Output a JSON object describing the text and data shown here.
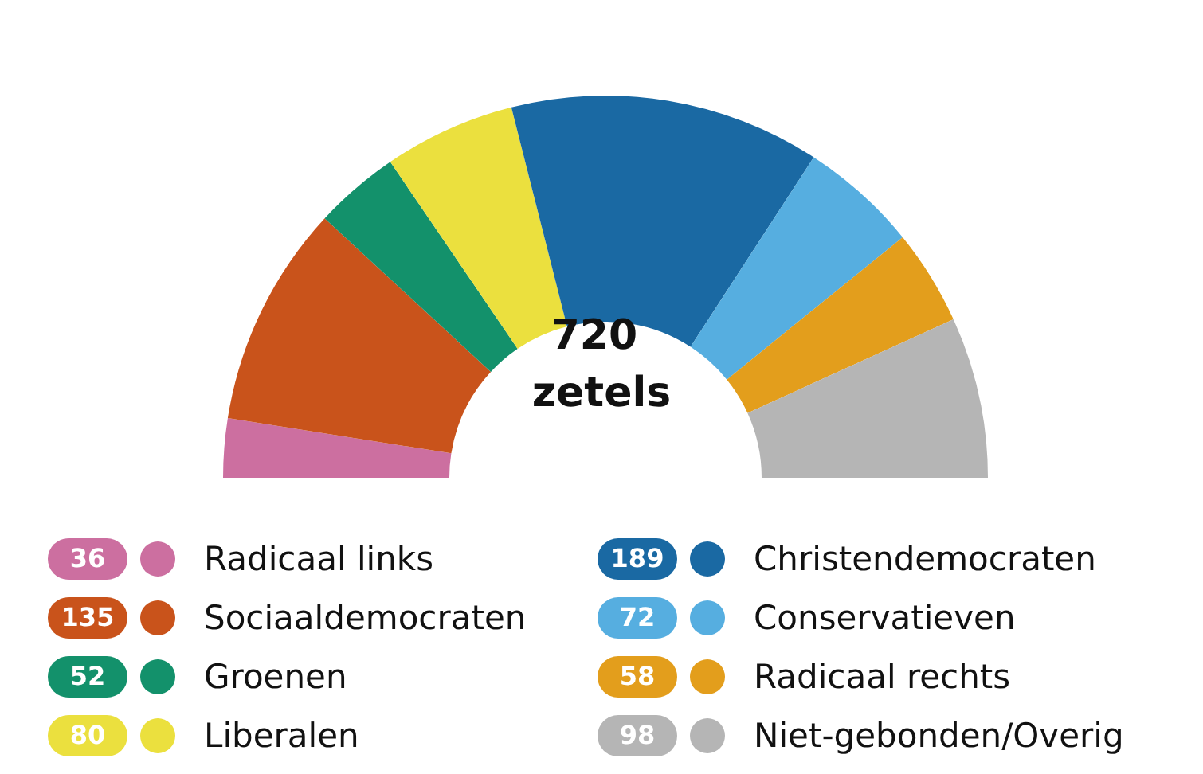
{
  "chart_data": {
    "type": "other",
    "title": "720 zetels",
    "categories": [
      "Radicaal links",
      "Sociaaldemocraten",
      "Groenen",
      "Liberalen",
      "Christendemocraten",
      "Conservatieven",
      "Radicaal rechts",
      "Niet-gebonden/Overig"
    ],
    "values": [
      36,
      135,
      52,
      80,
      189,
      72,
      58,
      98
    ],
    "colors": [
      "#cc6fa0",
      "#c9531b",
      "#13916b",
      "#ebe03e",
      "#1a69a3",
      "#56aee0",
      "#e39e1c",
      "#b5b5b5"
    ],
    "data_labels": true
  }
}
